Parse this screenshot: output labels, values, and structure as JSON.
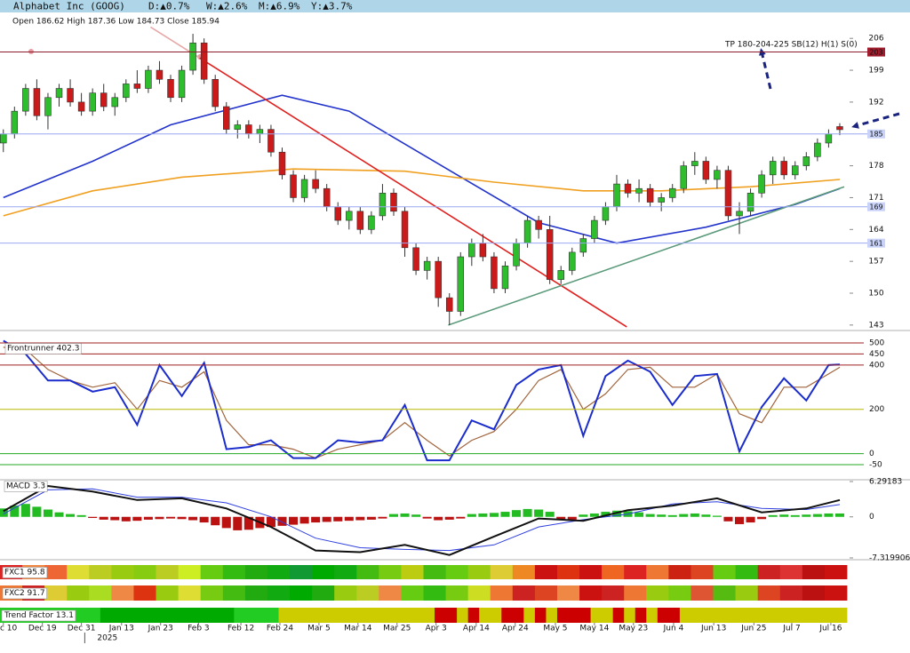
{
  "header": {
    "title": "Alphabet Inc (GOOG)",
    "stats": [
      "D:▲0.7%",
      "W:▲2.6%",
      "M:▲6.9%",
      "Y:▲3.7%"
    ]
  },
  "chart_data": [
    {
      "type": "candlestick",
      "ohlc_label": "Open 186.62 High 187.36 Low 184.73 Close 185.94",
      "annotation": "TP 180-204-225 SB(12) H(1) S(0)",
      "up_color": "#2dbd2d",
      "down_color": "#cc1a1a",
      "xlim": [
        -0.3,
        75.8
      ],
      "xticks": [
        {
          "value": 0,
          "label": "c 10"
        },
        {
          "value": 3.5,
          "label": "Dec 19"
        },
        {
          "value": 7,
          "label": "Dec 31"
        },
        {
          "value": 10.6,
          "label": "Jan 13"
        },
        {
          "value": 14.1,
          "label": "Jan 23"
        },
        {
          "value": 17.5,
          "label": "Feb 3"
        },
        {
          "value": 21.3,
          "label": "Feb 12"
        },
        {
          "value": 24.8,
          "label": "Feb 24"
        },
        {
          "value": 28.3,
          "label": "Mar 5"
        },
        {
          "value": 31.8,
          "label": "Mar 14"
        },
        {
          "value": 35.3,
          "label": "Mar 25"
        },
        {
          "value": 38.8,
          "label": "Apr 3"
        },
        {
          "value": 42.4,
          "label": "Apr 14"
        },
        {
          "value": 45.9,
          "label": "Apr 24"
        },
        {
          "value": 49.5,
          "label": "May 5"
        },
        {
          "value": 53,
          "label": "May 14"
        },
        {
          "value": 56.5,
          "label": "May 23"
        },
        {
          "value": 60.1,
          "label": "Jun 4"
        },
        {
          "value": 63.7,
          "label": "Jun 13"
        },
        {
          "value": 67.3,
          "label": "Jun 25"
        },
        {
          "value": 70.7,
          "label": "Jul 7"
        },
        {
          "value": 74.2,
          "label": "Jul 16"
        }
      ],
      "year_tick": {
        "value": 7.3,
        "label": "2025"
      },
      "ylim": [
        141.8,
        211.7
      ],
      "yticks": [
        143,
        150,
        157,
        164,
        171,
        178,
        192,
        199,
        206
      ],
      "levels": [
        {
          "value": 203,
          "color": "#8b1a2a",
          "box": "#a01c2c",
          "text_color": "#ffffff"
        },
        {
          "value": 185,
          "color": "#9aa8f2",
          "box": "#c9d3fa",
          "text_color": "#2233aa"
        },
        {
          "value": 169,
          "color": "#9aa8f2",
          "box": "#c9d3fa",
          "text_color": "#2233aa"
        },
        {
          "value": 161,
          "color": "#9aa8f2",
          "box": "#c9d3fa",
          "text_color": "#2233aa"
        }
      ],
      "series": [
        {
          "color": "#2233cc",
          "x": [
            0,
            8,
            15,
            25,
            31,
            40,
            48,
            55,
            63,
            71,
            75
          ],
          "values": [
            171,
            179,
            187,
            193.5,
            190,
            177,
            165.5,
            161,
            164.5,
            169.5,
            173
          ]
        },
        {
          "color": "#f0a020",
          "x": [
            0,
            8,
            16,
            26,
            36,
            44,
            52,
            59,
            67,
            75
          ],
          "values": [
            167,
            172.5,
            175.5,
            177.3,
            176.8,
            174.4,
            172.5,
            172.5,
            173.4,
            175
          ]
        }
      ],
      "trendlines": [
        {
          "color": "#e8a8a8",
          "x": [
            13.2,
            17.6
          ],
          "values": [
            208.5,
            201.7
          ]
        },
        {
          "color": "#e0201e",
          "x": [
            17.6,
            55.9
          ],
          "values": [
            201.7,
            142.6
          ]
        },
        {
          "color": "#5a9a7a",
          "x": [
            39.9,
            75.4
          ],
          "values": [
            143,
            173.4
          ]
        }
      ],
      "candles": [
        [
          183,
          186,
          181,
          185
        ],
        [
          185,
          191,
          184,
          190
        ],
        [
          190,
          196,
          189,
          195
        ],
        [
          195,
          197,
          188,
          189
        ],
        [
          189,
          194,
          186,
          193
        ],
        [
          193,
          196,
          191,
          195
        ],
        [
          195,
          197,
          191,
          192
        ],
        [
          192,
          194,
          189,
          190
        ],
        [
          190,
          195,
          189,
          194
        ],
        [
          194,
          196,
          190,
          191
        ],
        [
          191,
          194,
          189,
          193
        ],
        [
          193,
          197,
          192,
          196
        ],
        [
          196,
          199,
          194,
          195
        ],
        [
          195,
          200,
          194,
          199
        ],
        [
          199,
          201,
          196,
          197
        ],
        [
          197,
          198,
          192,
          193
        ],
        [
          193,
          200,
          192,
          199
        ],
        [
          199,
          207,
          198,
          205
        ],
        [
          205,
          206,
          196,
          197
        ],
        [
          197,
          198,
          190,
          191
        ],
        [
          191,
          192,
          185,
          186
        ],
        [
          186,
          188,
          184,
          187
        ],
        [
          187,
          188,
          184,
          185
        ],
        [
          185,
          187,
          183,
          186
        ],
        [
          186,
          187,
          180,
          181
        ],
        [
          181,
          182,
          175,
          176
        ],
        [
          176,
          177,
          170,
          171
        ],
        [
          171,
          176,
          170,
          175
        ],
        [
          175,
          177,
          172,
          173
        ],
        [
          173,
          174,
          168,
          169
        ],
        [
          169,
          170,
          165,
          166
        ],
        [
          166,
          169,
          164,
          168
        ],
        [
          168,
          169,
          163,
          164
        ],
        [
          164,
          168,
          163,
          167
        ],
        [
          167,
          174,
          166,
          172
        ],
        [
          172,
          173,
          167,
          168
        ],
        [
          168,
          169,
          158,
          160
        ],
        [
          160,
          161,
          154,
          155
        ],
        [
          155,
          158,
          153,
          157
        ],
        [
          157,
          158,
          147,
          149
        ],
        [
          149,
          150,
          143,
          146
        ],
        [
          146,
          159,
          145,
          158
        ],
        [
          158,
          162,
          156,
          161
        ],
        [
          161,
          163,
          157,
          158
        ],
        [
          158,
          159,
          150,
          151
        ],
        [
          151,
          157,
          150,
          156
        ],
        [
          156,
          162,
          155,
          161
        ],
        [
          161,
          167,
          160,
          166
        ],
        [
          166,
          167,
          162,
          164
        ],
        [
          164,
          167,
          152,
          153
        ],
        [
          153,
          156,
          152,
          155
        ],
        [
          155,
          160,
          154,
          159
        ],
        [
          159,
          163,
          158,
          162
        ],
        [
          162,
          167,
          161,
          166
        ],
        [
          166,
          170,
          165,
          169
        ],
        [
          169,
          176,
          168,
          174
        ],
        [
          174,
          175,
          171,
          172
        ],
        [
          172,
          175,
          170,
          173
        ],
        [
          173,
          174,
          169,
          170
        ],
        [
          170,
          172,
          168,
          171
        ],
        [
          171,
          174,
          170,
          173
        ],
        [
          173,
          179,
          172,
          178
        ],
        [
          178,
          181,
          176,
          179
        ],
        [
          179,
          180,
          174,
          175
        ],
        [
          175,
          178,
          173,
          177
        ],
        [
          177,
          178,
          166,
          167
        ],
        [
          167,
          170,
          163,
          168
        ],
        [
          168,
          173,
          167,
          172
        ],
        [
          172,
          177,
          171,
          176
        ],
        [
          176,
          180,
          174,
          179
        ],
        [
          179,
          180,
          175,
          176
        ],
        [
          176,
          179,
          175,
          178
        ],
        [
          178,
          181,
          177,
          180
        ],
        [
          180,
          184,
          179,
          183
        ],
        [
          183,
          186,
          182,
          185
        ],
        [
          186.62,
          187.36,
          184.73,
          185.94
        ]
      ]
    },
    {
      "type": "line",
      "title": "Frontrunner 402.3",
      "ylim": [
        -118,
        556
      ],
      "yticks": [
        500,
        450,
        400,
        200,
        0,
        -50
      ],
      "tick_colors": [
        "#a02020",
        "#a02020",
        "#a02020",
        "#b8b800",
        "#22aa22",
        "#22aa22"
      ],
      "x": [
        0,
        2,
        4,
        6,
        8,
        10,
        12,
        14,
        16,
        18,
        20,
        22,
        24,
        26,
        28,
        30,
        32,
        34,
        36,
        38,
        40,
        42,
        44,
        46,
        48,
        50,
        52,
        54,
        56,
        58,
        60,
        62,
        64,
        66,
        68,
        70,
        72,
        74,
        75
      ],
      "series": [
        {
          "color": "#1a2ccc",
          "values": [
            510,
            450,
            330,
            330,
            280,
            300,
            130,
            400,
            260,
            410,
            20,
            30,
            60,
            -20,
            -20,
            60,
            50,
            60,
            220,
            -30,
            -30,
            150,
            110,
            310,
            380,
            400,
            80,
            350,
            420,
            370,
            220,
            350,
            360,
            10,
            210,
            340,
            240,
            400,
            402.3
          ]
        },
        {
          "color": "#a0643c",
          "values": [
            480,
            470,
            380,
            330,
            300,
            320,
            200,
            330,
            300,
            370,
            150,
            40,
            40,
            20,
            -20,
            20,
            40,
            60,
            140,
            60,
            -10,
            60,
            100,
            200,
            330,
            380,
            200,
            270,
            380,
            390,
            300,
            300,
            360,
            180,
            140,
            300,
            300,
            360,
            390
          ]
        }
      ]
    },
    {
      "type": "macd",
      "title": "MACD 3.3",
      "ylim": [
        -7.64,
        6.61
      ],
      "yticks": [
        6.29183,
        0,
        -7.319906
      ],
      "pos_color": "#22bb22",
      "neg_color": "#bb1111",
      "histogram": [
        1.5,
        2.0,
        2.3,
        1.8,
        1.3,
        0.8,
        0.5,
        0.3,
        -0.2,
        -0.5,
        -0.6,
        -0.8,
        -0.7,
        -0.5,
        -0.4,
        -0.3,
        -0.4,
        -0.6,
        -1.0,
        -1.5,
        -2.0,
        -2.4,
        -2.3,
        -2.0,
        -1.8,
        -1.6,
        -1.4,
        -1.2,
        -1.0,
        -0.9,
        -0.8,
        -0.7,
        -0.6,
        -0.5,
        -0.3,
        0.5,
        0.6,
        0.4,
        -0.3,
        -0.6,
        -0.5,
        -0.3,
        0.5,
        0.6,
        0.7,
        0.9,
        1.2,
        1.4,
        1.3,
        0.9,
        -0.4,
        -0.5,
        0.4,
        0.6,
        0.9,
        1.1,
        1.0,
        0.8,
        0.5,
        0.4,
        0.3,
        0.5,
        0.6,
        0.4,
        0.2,
        -0.8,
        -1.3,
        -1.0,
        -0.4,
        0.3,
        0.4,
        0.3,
        0.4,
        0.5,
        0.6,
        0.6
      ],
      "x": [
        0,
        4,
        8,
        12,
        16,
        20,
        24,
        28,
        32,
        36,
        40,
        44,
        48,
        52,
        56,
        60,
        64,
        68,
        72,
        75
      ],
      "series": [
        {
          "color": "#111111",
          "values": [
            1,
            5.5,
            4.5,
            3.0,
            3.3,
            1.5,
            -1.8,
            -6.0,
            -6.3,
            -5.0,
            -6.8,
            -3.5,
            -0.3,
            -0.7,
            1.2,
            2.0,
            3.3,
            0.8,
            1.5,
            3.0
          ]
        },
        {
          "color": "#3040e0",
          "values": [
            0.5,
            4.8,
            5.0,
            3.5,
            3.5,
            2.5,
            0.0,
            -3.8,
            -5.5,
            -5.8,
            -6.0,
            -5.0,
            -1.8,
            -0.5,
            0.5,
            2.3,
            2.7,
            1.5,
            1.3,
            2.2
          ]
        }
      ]
    },
    {
      "type": "heatstrip",
      "title": "FXC1 95.8",
      "cells": [
        "#dd2222",
        "#ee8844",
        "#ee6633",
        "#dddd33",
        "#bbcc22",
        "#99cc11",
        "#88cc11",
        "#bbcc22",
        "#ccee22",
        "#66cc11",
        "#33bb11",
        "#22aa11",
        "#11aa11",
        "#119933",
        "#00aa00",
        "#11aa11",
        "#44bb11",
        "#77cc11",
        "#bbcc11",
        "#44bb11",
        "#66cc11",
        "#99cc11",
        "#ddcc33",
        "#ee8822",
        "#cc1111",
        "#dd3311",
        "#cc1111",
        "#ee6622",
        "#dd2222",
        "#ee7733",
        "#cc2211",
        "#dd4422",
        "#66cc11",
        "#33bb11",
        "#cc2222",
        "#dd3333",
        "#bb1111",
        "#cc1111"
      ]
    },
    {
      "type": "heatstrip",
      "title": "FXC2 91.7",
      "cells": [
        "#ee7733",
        "#cc2222",
        "#ddcc33",
        "#99cc11",
        "#aadd22",
        "#ee8844",
        "#dd3311",
        "#99cc11",
        "#dddd33",
        "#77cc11",
        "#44bb11",
        "#22aa11",
        "#11aa11",
        "#00aa00",
        "#22aa11",
        "#99cc11",
        "#bbcc22",
        "#ee8844",
        "#66cc11",
        "#33bb11",
        "#77cc11",
        "#ccdd22",
        "#ee7733",
        "#cc2222",
        "#dd4422",
        "#ee8844",
        "#cc1111",
        "#cc2222",
        "#ee7733",
        "#99cc11",
        "#77cc11",
        "#dd5533",
        "#55bb11",
        "#99cc11",
        "#dd4422",
        "#cc2222",
        "#bb1111",
        "#cc1111"
      ]
    },
    {
      "type": "heatstrip",
      "title": "Trend Factor 13.1",
      "cells": [
        "#22cc22",
        "#22cc22",
        "#22cc22",
        "#22cc22",
        "#22cc22",
        "#22cc22",
        "#22cc22",
        "#22cc22",
        "#22cc22",
        "#00aa00",
        "#00aa00",
        "#00aa00",
        "#00aa00",
        "#00aa00",
        "#00aa00",
        "#00aa00",
        "#00aa00",
        "#00aa00",
        "#00aa00",
        "#00aa00",
        "#00aa00",
        "#22cc22",
        "#22cc22",
        "#22cc22",
        "#22cc22",
        "#cccc00",
        "#cccc00",
        "#cccc00",
        "#cccc00",
        "#cccc00",
        "#cccc00",
        "#cccc00",
        "#cccc00",
        "#cccc00",
        "#cccc00",
        "#cccc00",
        "#cccc00",
        "#cccc00",
        "#cccc00",
        "#cc0000",
        "#cc0000",
        "#cccc00",
        "#cc0000",
        "#cccc00",
        "#cccc00",
        "#cc0000",
        "#cc0000",
        "#cccc00",
        "#cc0000",
        "#cccc00",
        "#cc0000",
        "#cc0000",
        "#cc0000",
        "#cccc00",
        "#cccc00",
        "#cc0000",
        "#cccc00",
        "#cc0000",
        "#cccc00",
        "#cc0000",
        "#cc0000",
        "#cccc00",
        "#cccc00",
        "#cccc00",
        "#cccc00",
        "#cccc00",
        "#cccc00",
        "#cccc00",
        "#cccc00",
        "#cccc00",
        "#cccc00",
        "#cccc00",
        "#cccc00",
        "#cccc00",
        "#cccc00",
        "#cccc00"
      ]
    }
  ]
}
